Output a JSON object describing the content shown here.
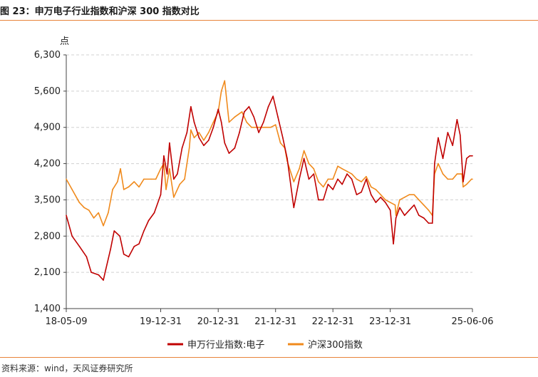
{
  "figure": {
    "title": "图 23：申万电子行业指数和沪深 300 指数对比",
    "source": "资料来源：wind，天风证券研究所"
  },
  "chart_data": {
    "type": "line",
    "unit_label": "点",
    "ylim": [
      1400,
      6300
    ],
    "yticks": [
      1400,
      2100,
      2800,
      3500,
      4200,
      4900,
      5600,
      6300
    ],
    "ytick_labels": [
      "1,400",
      "2,100",
      "2,800",
      "3,500",
      "4,200",
      "4,900",
      "5,600",
      "6,300"
    ],
    "xlim": [
      "2018-05-09",
      "2025-06-06"
    ],
    "xticks": [
      "2018-05-09",
      "2019-12-31",
      "2020-12-31",
      "2021-12-31",
      "2022-12-31",
      "2023-12-31",
      "2025-06-06"
    ],
    "xtick_labels": [
      "18-05-09",
      "19-12-31",
      "20-12-31",
      "21-12-31",
      "22-12-31",
      "23-12-31",
      "25-06-06"
    ],
    "grid": "horizontal dashed",
    "legend_position": "bottom",
    "series": [
      {
        "name": "申万行业指数:电子",
        "color": "#c00000",
        "x": [
          "2018-05-09",
          "2018-06-15",
          "2018-08-01",
          "2018-09-15",
          "2018-10-15",
          "2018-12-01",
          "2018-12-31",
          "2019-01-15",
          "2019-02-15",
          "2019-03-10",
          "2019-04-15",
          "2019-05-10",
          "2019-06-10",
          "2019-07-15",
          "2019-08-15",
          "2019-09-15",
          "2019-10-15",
          "2019-11-20",
          "2019-12-31",
          "2020-01-20",
          "2020-02-10",
          "2020-02-25",
          "2020-03-23",
          "2020-04-15",
          "2020-05-15",
          "2020-06-15",
          "2020-07-10",
          "2020-07-31",
          "2020-08-31",
          "2020-09-30",
          "2020-10-31",
          "2020-11-30",
          "2020-12-31",
          "2021-01-20",
          "2021-02-10",
          "2021-03-10",
          "2021-04-15",
          "2021-05-15",
          "2021-06-15",
          "2021-07-15",
          "2021-08-15",
          "2021-09-15",
          "2021-10-15",
          "2021-11-15",
          "2021-12-15",
          "2022-01-15",
          "2022-02-15",
          "2022-03-15",
          "2022-04-26",
          "2022-05-31",
          "2022-06-30",
          "2022-07-31",
          "2022-08-31",
          "2022-09-30",
          "2022-10-31",
          "2022-11-30",
          "2022-12-31",
          "2023-01-31",
          "2023-02-28",
          "2023-03-31",
          "2023-04-30",
          "2023-05-31",
          "2023-06-30",
          "2023-07-31",
          "2023-08-31",
          "2023-09-30",
          "2023-10-31",
          "2023-11-30",
          "2023-12-31",
          "2024-01-20",
          "2024-02-05",
          "2024-02-29",
          "2024-03-31",
          "2024-04-30",
          "2024-05-31",
          "2024-06-30",
          "2024-07-31",
          "2024-08-31",
          "2024-09-24",
          "2024-10-08",
          "2024-10-31",
          "2024-11-30",
          "2024-12-31",
          "2025-01-31",
          "2025-02-28",
          "2025-03-20",
          "2025-04-08",
          "2025-04-30",
          "2025-05-20",
          "2025-06-06"
        ],
        "values": [
          3200,
          2800,
          2600,
          2400,
          2100,
          2050,
          1950,
          2150,
          2550,
          2900,
          2800,
          2450,
          2400,
          2600,
          2650,
          2900,
          3100,
          3250,
          3600,
          4350,
          4000,
          4600,
          3900,
          4000,
          4500,
          4800,
          5300,
          5000,
          4700,
          4550,
          4650,
          4900,
          5250,
          5000,
          4600,
          4400,
          4500,
          4800,
          5200,
          5300,
          5100,
          4800,
          5000,
          5300,
          5500,
          5100,
          4700,
          4300,
          3350,
          3900,
          4300,
          3900,
          4000,
          3500,
          3500,
          3800,
          3700,
          3900,
          3800,
          4000,
          3900,
          3600,
          3650,
          3900,
          3600,
          3450,
          3550,
          3450,
          3300,
          2650,
          3150,
          3350,
          3200,
          3300,
          3400,
          3200,
          3150,
          3050,
          3050,
          4200,
          4700,
          4300,
          4800,
          4550,
          5050,
          4750,
          3850,
          4300,
          4350,
          4350
        ]
      },
      {
        "name": "沪深300指数",
        "color": "#f08a1c",
        "x": [
          "2018-05-09",
          "2018-06-15",
          "2018-07-31",
          "2018-08-31",
          "2018-09-30",
          "2018-10-31",
          "2018-11-30",
          "2018-12-31",
          "2019-01-31",
          "2019-02-28",
          "2019-03-31",
          "2019-04-19",
          "2019-05-10",
          "2019-06-10",
          "2019-07-15",
          "2019-08-15",
          "2019-09-15",
          "2019-10-31",
          "2019-11-30",
          "2019-12-31",
          "2020-01-20",
          "2020-02-03",
          "2020-02-25",
          "2020-03-23",
          "2020-04-30",
          "2020-05-31",
          "2020-06-30",
          "2020-07-10",
          "2020-07-31",
          "2020-08-31",
          "2020-09-30",
          "2020-10-31",
          "2020-11-30",
          "2020-12-31",
          "2021-01-20",
          "2021-02-10",
          "2021-03-10",
          "2021-04-15",
          "2021-05-31",
          "2021-06-30",
          "2021-07-31",
          "2021-08-31",
          "2021-09-30",
          "2021-10-31",
          "2021-11-30",
          "2021-12-31",
          "2022-01-31",
          "2022-02-28",
          "2022-03-15",
          "2022-04-26",
          "2022-05-31",
          "2022-06-30",
          "2022-07-31",
          "2022-08-31",
          "2022-09-30",
          "2022-10-31",
          "2022-11-30",
          "2022-12-31",
          "2023-01-31",
          "2023-02-28",
          "2023-03-31",
          "2023-04-30",
          "2023-05-31",
          "2023-06-30",
          "2023-07-31",
          "2023-08-31",
          "2023-09-30",
          "2023-10-31",
          "2023-11-30",
          "2023-12-31",
          "2024-01-31",
          "2024-02-05",
          "2024-02-29",
          "2024-03-31",
          "2024-04-30",
          "2024-05-31",
          "2024-06-30",
          "2024-07-31",
          "2024-08-31",
          "2024-09-24",
          "2024-10-08",
          "2024-10-31",
          "2024-11-30",
          "2024-12-31",
          "2025-01-31",
          "2025-02-28",
          "2025-03-31",
          "2025-04-08",
          "2025-04-30",
          "2025-05-31",
          "2025-06-06"
        ],
        "values": [
          3900,
          3700,
          3450,
          3350,
          3300,
          3150,
          3250,
          3000,
          3250,
          3700,
          3850,
          4100,
          3700,
          3750,
          3850,
          3750,
          3900,
          3900,
          3900,
          4100,
          4200,
          3700,
          4100,
          3550,
          3800,
          3900,
          4500,
          4850,
          4700,
          4800,
          4650,
          4800,
          5000,
          5200,
          5600,
          5800,
          5000,
          5100,
          5200,
          5000,
          4900,
          4900,
          4900,
          4900,
          4900,
          4950,
          4600,
          4500,
          4250,
          3850,
          4100,
          4450,
          4200,
          4100,
          3850,
          3750,
          3900,
          3900,
          4150,
          4100,
          4050,
          4000,
          3900,
          3850,
          3950,
          3750,
          3700,
          3600,
          3500,
          3450,
          3400,
          3200,
          3500,
          3550,
          3600,
          3600,
          3500,
          3400,
          3300,
          3200,
          4000,
          4200,
          4000,
          3900,
          3900,
          4000,
          4000,
          3750,
          3800,
          3900,
          3900
        ]
      }
    ]
  }
}
